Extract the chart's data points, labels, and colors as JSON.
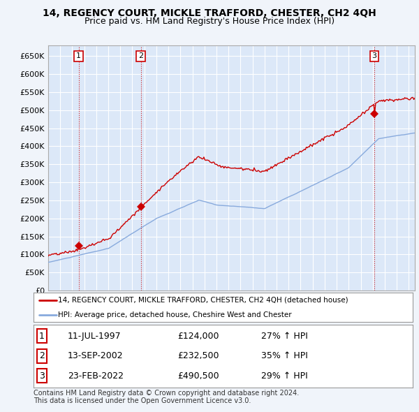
{
  "title": "14, REGENCY COURT, MICKLE TRAFFORD, CHESTER, CH2 4QH",
  "subtitle": "Price paid vs. HM Land Registry's House Price Index (HPI)",
  "ylim": [
    0,
    680000
  ],
  "yticks": [
    0,
    50000,
    100000,
    150000,
    200000,
    250000,
    300000,
    350000,
    400000,
    450000,
    500000,
    550000,
    600000,
    650000
  ],
  "xlim_start": 1995.0,
  "xlim_end": 2025.5,
  "background_color": "#f0f4fa",
  "plot_bg_color": "#dce8f8",
  "grid_color": "#ffffff",
  "sale_color": "#cc0000",
  "hpi_color": "#88aadd",
  "sales": [
    {
      "date": 1997.53,
      "price": 124000,
      "label": "1"
    },
    {
      "date": 2002.71,
      "price": 232500,
      "label": "2"
    },
    {
      "date": 2022.14,
      "price": 490500,
      "label": "3"
    }
  ],
  "legend_sale_label": "14, REGENCY COURT, MICKLE TRAFFORD, CHESTER, CH2 4QH (detached house)",
  "legend_hpi_label": "HPI: Average price, detached house, Cheshire West and Chester",
  "table_rows": [
    {
      "num": "1",
      "date": "11-JUL-1997",
      "price": "£124,000",
      "hpi": "27% ↑ HPI"
    },
    {
      "num": "2",
      "date": "13-SEP-2002",
      "price": "£232,500",
      "hpi": "35% ↑ HPI"
    },
    {
      "num": "3",
      "date": "23-FEB-2022",
      "price": "£490,500",
      "hpi": "29% ↑ HPI"
    }
  ],
  "footer": "Contains HM Land Registry data © Crown copyright and database right 2024.\nThis data is licensed under the Open Government Licence v3.0.",
  "title_fontsize": 10,
  "subtitle_fontsize": 9
}
